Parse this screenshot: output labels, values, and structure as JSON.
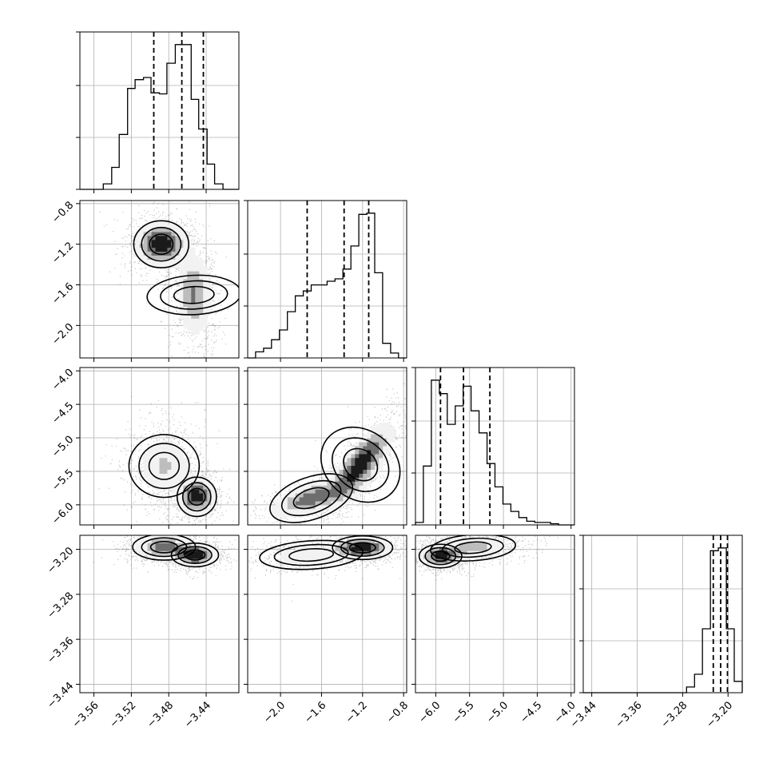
{
  "chart_data": {
    "type": "corner",
    "parameters": [
      {
        "range": [
          -3.575,
          -3.405
        ],
        "ticks": [
          -3.56,
          -3.52,
          -3.48,
          -3.44
        ],
        "tick_labels": [
          "−3.56",
          "−3.52",
          "−3.48",
          "−3.44"
        ],
        "quantiles": [
          -3.496,
          -3.466,
          -3.443
        ],
        "hist_bins": [
          -3.575,
          -3.567,
          -3.558,
          -3.55,
          -3.541,
          -3.533,
          -3.524,
          -3.516,
          -3.507,
          -3.499,
          -3.49,
          -3.482,
          -3.473,
          -3.465,
          -3.456,
          -3.448,
          -3.439,
          -3.431,
          -3.422,
          -3.414,
          -3.405
        ],
        "hist_counts": [
          0,
          0,
          0,
          0.05,
          0.2,
          0.5,
          0.92,
          1.0,
          1.02,
          0.88,
          0.87,
          1.15,
          1.32,
          1.32,
          0.82,
          0.55,
          0.23,
          0.05,
          0,
          0
        ]
      },
      {
        "range": [
          -2.32,
          -0.77
        ],
        "ticks": [
          -2.0,
          -1.6,
          -1.2,
          -0.8
        ],
        "tick_labels": [
          "−2.0",
          "−1.6",
          "−1.2",
          "−0.8"
        ],
        "quantiles": [
          -1.74,
          -1.38,
          -1.14
        ],
        "hist_bins": [
          -2.32,
          -2.2426,
          -2.1652,
          -2.0878,
          -2.0104,
          -1.933,
          -1.8556,
          -1.7782,
          -1.7008,
          -1.6234,
          -1.546,
          -1.4686,
          -1.3912,
          -1.3138,
          -1.2364,
          -1.159,
          -1.0816,
          -1.0042,
          -0.9268,
          -0.8494,
          -0.772
        ],
        "hist_counts": [
          0,
          0.05,
          0.08,
          0.15,
          0.23,
          0.38,
          0.51,
          0.55,
          0.6,
          0.6,
          0.63,
          0.65,
          0.73,
          0.92,
          1.18,
          1.19,
          0.7,
          0.12,
          0.04,
          0
        ]
      },
      {
        "range": [
          -6.3,
          -3.95
        ],
        "ticks": [
          -6.0,
          -5.5,
          -5.0,
          -4.5,
          -4.0
        ],
        "tick_labels": [
          "−6.0",
          "−5.5",
          "−5.0",
          "−4.5",
          "−4.0"
        ],
        "quantiles": [
          -5.93,
          -5.59,
          -5.2
        ],
        "hist_bins": [
          -6.3,
          -6.1825,
          -6.065,
          -5.9475,
          -5.83,
          -5.7125,
          -5.595,
          -5.4775,
          -5.36,
          -5.2425,
          -5.125,
          -5.0075,
          -4.89,
          -4.7725,
          -4.655,
          -4.5375,
          -4.42,
          -4.3025,
          -4.185,
          -4.0675,
          -3.95
        ],
        "hist_counts": [
          0.02,
          0.48,
          1.18,
          1.07,
          0.82,
          0.97,
          1.13,
          0.93,
          0.75,
          0.5,
          0.31,
          0.17,
          0.11,
          0.06,
          0.03,
          0.02,
          0.02,
          0.01,
          0,
          0
        ]
      },
      {
        "range": [
          -3.455,
          -3.175
        ],
        "ticks": [
          -3.44,
          -3.36,
          -3.28,
          -3.2
        ],
        "tick_labels": [
          "−3.44",
          "−3.36",
          "−3.28",
          "−3.20"
        ],
        "quantiles": [
          -3.226,
          -3.213,
          -3.201
        ],
        "hist_bins": [
          -3.455,
          -3.441,
          -3.427,
          -3.413,
          -3.399,
          -3.385,
          -3.371,
          -3.357,
          -3.343,
          -3.329,
          -3.315,
          -3.301,
          -3.287,
          -3.273,
          -3.259,
          -3.245,
          -3.231,
          -3.217,
          -3.203,
          -3.189,
          -3.175
        ],
        "hist_counts": [
          0,
          0,
          0,
          0,
          0,
          0,
          0,
          0,
          0,
          0,
          0,
          0,
          0,
          0.04,
          0.13,
          0.45,
          1.0,
          1.02,
          0.45,
          0.08
        ]
      }
    ],
    "pair_modes": [
      {
        "x": 0,
        "y": 1,
        "modes": [
          {
            "mx": -3.488,
            "my": -1.2,
            "sx": 0.014,
            "sy": 0.11,
            "rho": 0.0,
            "w": 0.55
          },
          {
            "mx": -3.453,
            "my": -1.7,
            "sx": 0.01,
            "sy": 0.22,
            "rho": -0.1,
            "w": 0.45
          }
        ]
      },
      {
        "x": 0,
        "y": 2,
        "modes": [
          {
            "mx": -3.485,
            "my": -5.42,
            "sx": 0.016,
            "sy": 0.25,
            "rho": 0.0,
            "w": 0.5
          },
          {
            "mx": -3.45,
            "my": -5.88,
            "sx": 0.01,
            "sy": 0.14,
            "rho": 0.0,
            "w": 0.5
          }
        ]
      },
      {
        "x": 0,
        "y": 3,
        "modes": [
          {
            "mx": -3.485,
            "my": -3.196,
            "sx": 0.016,
            "sy": 0.011,
            "rho": 0.0,
            "w": 0.5
          },
          {
            "mx": -3.452,
            "my": -3.21,
            "sx": 0.012,
            "sy": 0.01,
            "rho": 0.0,
            "w": 0.5
          }
        ]
      },
      {
        "x": 1,
        "y": 2,
        "modes": [
          {
            "mx": -1.7,
            "my": -5.9,
            "sx": 0.2,
            "sy": 0.15,
            "rho": 0.6,
            "w": 0.35
          },
          {
            "mx": -1.22,
            "my": -5.4,
            "sx": 0.16,
            "sy": 0.3,
            "rho": 0.75,
            "w": 0.65
          }
        ]
      },
      {
        "x": 1,
        "y": 3,
        "modes": [
          {
            "mx": -1.7,
            "my": -3.21,
            "sx": 0.24,
            "sy": 0.012,
            "rho": 0.2,
            "w": 0.35
          },
          {
            "mx": -1.2,
            "my": -3.197,
            "sx": 0.14,
            "sy": 0.01,
            "rho": 0.0,
            "w": 0.65
          }
        ]
      },
      {
        "x": 2,
        "y": 3,
        "modes": [
          {
            "mx": -5.93,
            "my": -3.212,
            "sx": 0.15,
            "sy": 0.01,
            "rho": 0.0,
            "w": 0.5
          },
          {
            "mx": -5.45,
            "my": -3.197,
            "sx": 0.3,
            "sy": 0.011,
            "rho": 0.2,
            "w": 0.5
          }
        ]
      }
    ]
  }
}
